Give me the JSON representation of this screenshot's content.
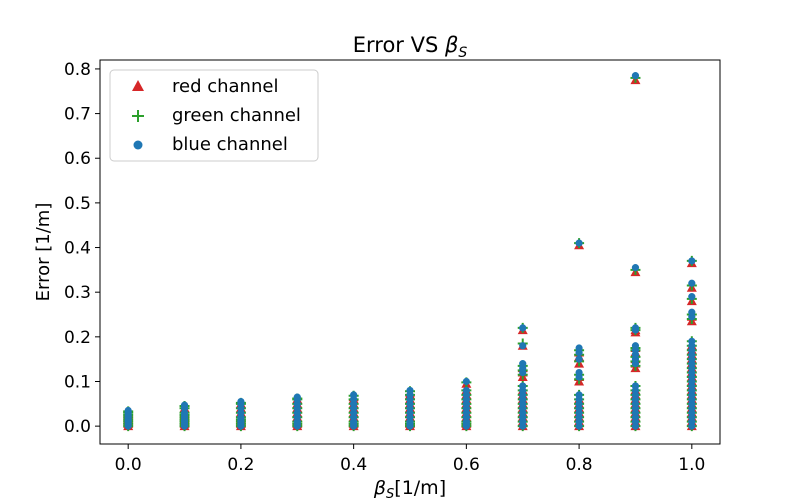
{
  "chart_data": {
    "type": "scatter",
    "title": {
      "prefix": "Error VS ",
      "symbol": "β",
      "subscript": "S"
    },
    "xlabel": {
      "symbol": "β",
      "subscript": "S",
      "suffix": "[1/m]"
    },
    "ylabel": "Error [1/m]",
    "xlim": [
      -0.05,
      1.05
    ],
    "ylim": [
      -0.04,
      0.82
    ],
    "xticks": [
      0.0,
      0.2,
      0.4,
      0.6,
      0.8,
      1.0
    ],
    "xtick_labels": [
      "0.0",
      "0.2",
      "0.4",
      "0.6",
      "0.8",
      "1.0"
    ],
    "yticks": [
      0.0,
      0.1,
      0.2,
      0.3,
      0.4,
      0.5,
      0.6,
      0.7,
      0.8
    ],
    "ytick_labels": [
      "0.0",
      "0.1",
      "0.2",
      "0.3",
      "0.4",
      "0.5",
      "0.6",
      "0.7",
      "0.8"
    ],
    "grid": false,
    "legend_position": "top-left",
    "series": [
      {
        "name": "red channel",
        "marker": "triangle",
        "color": "#d62728",
        "points": [
          {
            "x": 0.0,
            "y": [
              0.0,
              0.005,
              0.01,
              0.015,
              0.02,
              0.025,
              0.03
            ]
          },
          {
            "x": 0.1,
            "y": [
              0.0,
              0.005,
              0.01,
              0.015,
              0.02,
              0.025,
              0.03,
              0.04
            ]
          },
          {
            "x": 0.2,
            "y": [
              0.0,
              0.005,
              0.01,
              0.015,
              0.02,
              0.03,
              0.04,
              0.05
            ]
          },
          {
            "x": 0.3,
            "y": [
              0.0,
              0.005,
              0.01,
              0.02,
              0.03,
              0.04,
              0.05,
              0.06
            ]
          },
          {
            "x": 0.4,
            "y": [
              0.0,
              0.005,
              0.01,
              0.02,
              0.03,
              0.04,
              0.05,
              0.06,
              0.065
            ]
          },
          {
            "x": 0.5,
            "y": [
              0.0,
              0.005,
              0.01,
              0.02,
              0.03,
              0.04,
              0.05,
              0.06,
              0.07,
              0.075
            ]
          },
          {
            "x": 0.6,
            "y": [
              0.0,
              0.005,
              0.01,
              0.02,
              0.03,
              0.04,
              0.05,
              0.06,
              0.07,
              0.08,
              0.095
            ]
          },
          {
            "x": 0.7,
            "y": [
              0.0,
              0.01,
              0.02,
              0.03,
              0.04,
              0.05,
              0.06,
              0.07,
              0.08,
              0.11,
              0.12,
              0.13,
              0.18,
              0.215
            ]
          },
          {
            "x": 0.8,
            "y": [
              0.0,
              0.01,
              0.02,
              0.03,
              0.04,
              0.05,
              0.06,
              0.1,
              0.11,
              0.14,
              0.155,
              0.165,
              0.405
            ]
          },
          {
            "x": 0.9,
            "y": [
              0.0,
              0.01,
              0.02,
              0.03,
              0.04,
              0.05,
              0.06,
              0.07,
              0.08,
              0.13,
              0.14,
              0.15,
              0.165,
              0.175,
              0.21,
              0.215,
              0.345,
              0.775
            ]
          },
          {
            "x": 1.0,
            "y": [
              0.0,
              0.01,
              0.02,
              0.03,
              0.04,
              0.05,
              0.06,
              0.07,
              0.08,
              0.09,
              0.1,
              0.11,
              0.12,
              0.13,
              0.14,
              0.15,
              0.16,
              0.17,
              0.18,
              0.235,
              0.245,
              0.28,
              0.31,
              0.365
            ]
          }
        ]
      },
      {
        "name": "green channel",
        "marker": "plus",
        "color": "#2ca02c",
        "points": [
          {
            "x": 0.0,
            "y": [
              0.0,
              0.005,
              0.01,
              0.015,
              0.02,
              0.025,
              0.03,
              0.033
            ]
          },
          {
            "x": 0.1,
            "y": [
              0.0,
              0.005,
              0.01,
              0.015,
              0.02,
              0.025,
              0.03,
              0.04,
              0.045
            ]
          },
          {
            "x": 0.2,
            "y": [
              0.0,
              0.005,
              0.01,
              0.015,
              0.02,
              0.03,
              0.04,
              0.05,
              0.052
            ]
          },
          {
            "x": 0.3,
            "y": [
              0.0,
              0.005,
              0.01,
              0.02,
              0.03,
              0.04,
              0.05,
              0.06,
              0.062
            ]
          },
          {
            "x": 0.4,
            "y": [
              0.0,
              0.005,
              0.01,
              0.02,
              0.03,
              0.04,
              0.05,
              0.06,
              0.068
            ]
          },
          {
            "x": 0.5,
            "y": [
              0.0,
              0.005,
              0.01,
              0.02,
              0.03,
              0.04,
              0.05,
              0.06,
              0.07,
              0.078
            ]
          },
          {
            "x": 0.6,
            "y": [
              0.0,
              0.005,
              0.01,
              0.02,
              0.03,
              0.04,
              0.05,
              0.06,
              0.07,
              0.08,
              0.098
            ]
          },
          {
            "x": 0.7,
            "y": [
              0.0,
              0.01,
              0.02,
              0.03,
              0.04,
              0.05,
              0.06,
              0.07,
              0.08,
              0.09,
              0.115,
              0.125,
              0.135,
              0.185,
              0.22
            ]
          },
          {
            "x": 0.8,
            "y": [
              0.0,
              0.01,
              0.02,
              0.03,
              0.04,
              0.05,
              0.06,
              0.07,
              0.105,
              0.115,
              0.145,
              0.16,
              0.17,
              0.41
            ]
          },
          {
            "x": 0.9,
            "y": [
              0.0,
              0.01,
              0.02,
              0.03,
              0.04,
              0.05,
              0.06,
              0.07,
              0.08,
              0.09,
              0.135,
              0.145,
              0.155,
              0.17,
              0.175,
              0.215,
              0.22,
              0.35,
              0.78
            ]
          },
          {
            "x": 1.0,
            "y": [
              0.0,
              0.01,
              0.02,
              0.03,
              0.04,
              0.05,
              0.06,
              0.07,
              0.08,
              0.09,
              0.1,
              0.11,
              0.12,
              0.13,
              0.14,
              0.15,
              0.16,
              0.17,
              0.18,
              0.19,
              0.24,
              0.25,
              0.285,
              0.315,
              0.37
            ]
          }
        ]
      },
      {
        "name": "blue channel",
        "marker": "circle",
        "color": "#1f77b4",
        "points": [
          {
            "x": 0.0,
            "y": [
              0.0,
              0.005,
              0.01,
              0.015,
              0.02,
              0.025,
              0.03,
              0.035
            ]
          },
          {
            "x": 0.1,
            "y": [
              0.0,
              0.005,
              0.01,
              0.015,
              0.02,
              0.025,
              0.03,
              0.04,
              0.047
            ]
          },
          {
            "x": 0.2,
            "y": [
              0.0,
              0.005,
              0.01,
              0.015,
              0.02,
              0.03,
              0.04,
              0.05,
              0.055
            ]
          },
          {
            "x": 0.3,
            "y": [
              0.0,
              0.005,
              0.01,
              0.02,
              0.03,
              0.04,
              0.05,
              0.06,
              0.065
            ]
          },
          {
            "x": 0.4,
            "y": [
              0.0,
              0.005,
              0.01,
              0.02,
              0.03,
              0.04,
              0.05,
              0.06,
              0.07
            ]
          },
          {
            "x": 0.5,
            "y": [
              0.0,
              0.005,
              0.01,
              0.02,
              0.03,
              0.04,
              0.05,
              0.06,
              0.07,
              0.08
            ]
          },
          {
            "x": 0.6,
            "y": [
              0.0,
              0.005,
              0.01,
              0.02,
              0.03,
              0.04,
              0.05,
              0.06,
              0.07,
              0.08,
              0.1
            ]
          },
          {
            "x": 0.7,
            "y": [
              0.0,
              0.01,
              0.02,
              0.03,
              0.04,
              0.05,
              0.06,
              0.07,
              0.08,
              0.09,
              0.12,
              0.13,
              0.14,
              0.18,
              0.22
            ]
          },
          {
            "x": 0.8,
            "y": [
              0.0,
              0.01,
              0.02,
              0.03,
              0.04,
              0.05,
              0.06,
              0.07,
              0.11,
              0.12,
              0.15,
              0.165,
              0.175,
              0.41
            ]
          },
          {
            "x": 0.9,
            "y": [
              0.0,
              0.01,
              0.02,
              0.03,
              0.04,
              0.05,
              0.06,
              0.07,
              0.08,
              0.09,
              0.14,
              0.15,
              0.16,
              0.17,
              0.18,
              0.215,
              0.22,
              0.355,
              0.785
            ]
          },
          {
            "x": 1.0,
            "y": [
              0.0,
              0.01,
              0.02,
              0.03,
              0.04,
              0.05,
              0.06,
              0.07,
              0.08,
              0.09,
              0.1,
              0.11,
              0.12,
              0.13,
              0.14,
              0.15,
              0.16,
              0.17,
              0.18,
              0.19,
              0.245,
              0.255,
              0.29,
              0.32,
              0.37
            ]
          }
        ]
      }
    ]
  }
}
